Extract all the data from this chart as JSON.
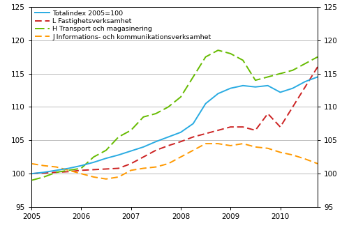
{
  "ylim": [
    95,
    125
  ],
  "yticks": [
    95,
    100,
    105,
    110,
    115,
    120,
    125
  ],
  "totalindex": [
    100.0,
    100.2,
    100.5,
    100.8,
    101.2,
    101.7,
    102.3,
    102.8,
    103.4,
    104.0,
    104.8,
    105.5,
    106.2,
    107.5,
    110.5,
    112.0,
    112.8,
    113.2,
    113.0,
    113.2,
    112.2,
    112.8,
    113.8,
    114.5
  ],
  "fastighets": [
    100.0,
    100.1,
    100.2,
    100.3,
    100.5,
    100.6,
    100.7,
    100.8,
    101.5,
    102.5,
    103.5,
    104.2,
    104.8,
    105.5,
    106.0,
    106.5,
    107.0,
    107.0,
    106.5,
    109.0,
    107.0,
    110.0,
    113.0,
    116.0
  ],
  "transport": [
    99.0,
    99.5,
    100.2,
    100.5,
    100.8,
    102.5,
    103.5,
    105.5,
    106.5,
    108.5,
    109.0,
    110.0,
    111.5,
    114.5,
    117.5,
    118.5,
    118.0,
    117.0,
    114.0,
    114.5,
    115.0,
    115.5,
    116.5,
    117.5
  ],
  "ikt": [
    101.5,
    101.2,
    101.0,
    100.5,
    100.0,
    99.5,
    99.2,
    99.5,
    100.5,
    100.8,
    101.0,
    101.5,
    102.5,
    103.5,
    104.5,
    104.5,
    104.2,
    104.5,
    104.0,
    103.8,
    103.2,
    102.8,
    102.2,
    101.5
  ],
  "colors": {
    "totalindex": "#29ABE2",
    "fastighets": "#CC2222",
    "transport": "#66BB00",
    "ikt": "#FF9900"
  },
  "legend_labels": [
    "Totalindex 2005=100",
    "L Fastighetsverksamhet",
    "H Transport och magasinering",
    "J Informations- och kommunikationsverksamhet"
  ],
  "xtick_years": [
    2005,
    2006,
    2007,
    2008,
    2009,
    2010
  ],
  "grid_color": "#bbbbbb",
  "background_color": "#ffffff"
}
